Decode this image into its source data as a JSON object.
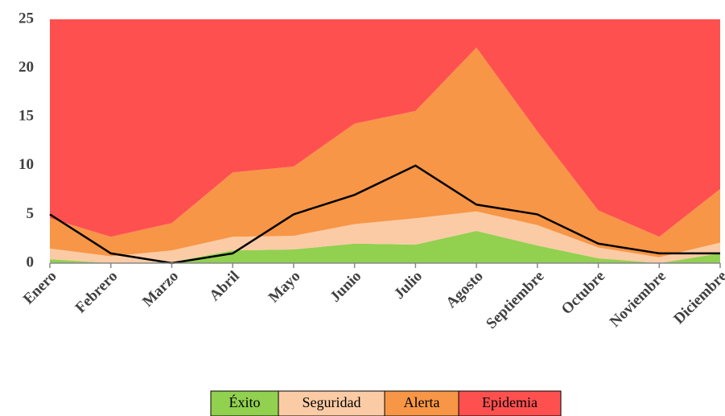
{
  "chart_data": {
    "type": "area",
    "stacked": true,
    "categories": [
      "Enero",
      "Febrero",
      "Marzo",
      "Abril",
      "Mayo",
      "Junio",
      "Julio",
      "Agosto",
      "Septiembre",
      "Octubre",
      "Noviembre",
      "Diciembre"
    ],
    "series": [
      {
        "name": "Éxito",
        "color": "#92d050",
        "values": [
          0.4,
          0,
          0.1,
          1.3,
          1.4,
          2.0,
          1.9,
          3.3,
          1.8,
          0.5,
          0,
          1.0
        ]
      },
      {
        "name": "Seguridad",
        "color": "#fbcba5",
        "values": [
          1.1,
          0.7,
          1.2,
          1.4,
          1.4,
          2.0,
          2.7,
          2.0,
          2.1,
          1.1,
          0.6,
          1.1
        ]
      },
      {
        "name": "Alerta",
        "color": "#f79646",
        "values": [
          3.1,
          2.0,
          2.8,
          6.6,
          7.1,
          10.3,
          11.0,
          16.8,
          9.6,
          3.8,
          2.1,
          5.5
        ]
      },
      {
        "name": "Epidemia",
        "color": "#ff5050",
        "values": [
          20.4,
          22.3,
          20.9,
          15.7,
          15.1,
          10.7,
          9.4,
          2.9,
          11.5,
          19.6,
          22.3,
          17.4
        ]
      }
    ],
    "line": {
      "color": "#000000",
      "values": [
        5,
        1,
        0,
        1,
        5,
        7,
        10,
        6,
        5,
        2,
        1,
        1
      ]
    },
    "ylim": [
      0,
      25
    ],
    "yticks": [
      0,
      5,
      10,
      15,
      20,
      25
    ],
    "grid": false,
    "legend": "bottom"
  }
}
